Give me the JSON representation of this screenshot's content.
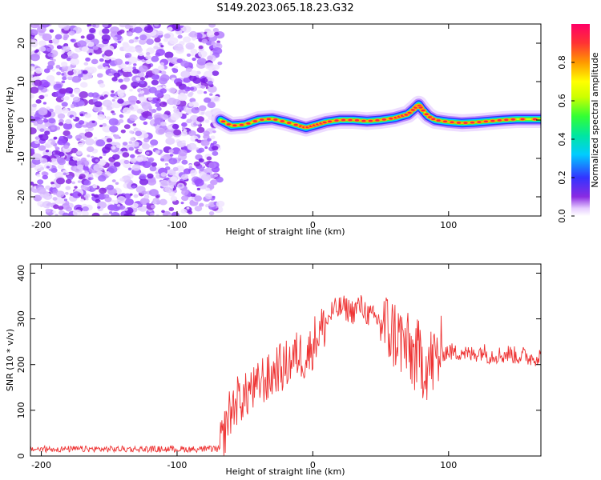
{
  "title": "S149.2023.065.18.23.G32",
  "chart_data": [
    {
      "type": "heatmap",
      "xlabel": "Height of straight line (km)",
      "ylabel": "Frequency (Hz)",
      "xlim": [
        -208,
        168
      ],
      "ylim": [
        -25,
        25
      ],
      "x_ticks": [
        -200,
        -100,
        0,
        100
      ],
      "x_tick_labels": [
        "-200",
        "-100",
        "0",
        "100"
      ],
      "y_ticks": [
        -20,
        -10,
        0,
        10,
        20
      ],
      "y_tick_labels": [
        "-20",
        "-10",
        "0",
        "10",
        "20"
      ],
      "colorbar": {
        "label": "Normalized spectral amplitude",
        "range": [
          0,
          1
        ],
        "ticks": [
          0.0,
          0.2,
          0.4,
          0.6,
          0.8
        ],
        "tick_labels": [
          "0.0",
          "0.2",
          "0.4",
          "0.6",
          "0.8"
        ],
        "colormap": [
          "#ffffff",
          "#cc99ff",
          "#8a2be2",
          "#3333ff",
          "#00ccff",
          "#00e6a0",
          "#33ff33",
          "#ccff00",
          "#ffff00",
          "#ff9900",
          "#ff3333",
          "#ff0066"
        ]
      },
      "noise_region_x": [
        -208,
        -68
      ],
      "signal_trace": {
        "x": [
          -68,
          -60,
          -50,
          -40,
          -30,
          -20,
          -10,
          -5,
          0,
          5,
          10,
          20,
          30,
          40,
          50,
          60,
          65,
          70,
          75,
          78,
          80,
          85,
          90,
          100,
          110,
          120,
          130,
          140,
          150,
          168
        ],
        "y": [
          0,
          -1.5,
          -1.2,
          0,
          0.3,
          -0.5,
          -1.5,
          -2,
          -1.5,
          -1,
          -0.5,
          0,
          0,
          -0.3,
          0,
          0.5,
          1,
          1.5,
          3,
          4,
          3,
          1,
          0,
          -0.5,
          -0.8,
          -0.6,
          -0.3,
          0,
          0.2,
          0.2
        ]
      }
    },
    {
      "type": "line",
      "xlabel": "Height of straight line (km)",
      "ylabel": "SNR (10 * v/v)",
      "xlim": [
        -208,
        168
      ],
      "ylim": [
        0,
        420
      ],
      "x_ticks": [
        -200,
        -100,
        0,
        100
      ],
      "x_tick_labels": [
        "-200",
        "-100",
        "0",
        "100"
      ],
      "y_ticks": [
        0,
        100,
        200,
        300,
        400
      ],
      "y_tick_labels": [
        "0",
        "100",
        "200",
        "300",
        "400"
      ],
      "color": "#ee3333",
      "series": [
        {
          "x": [
            -208,
            -190,
            -170,
            -150,
            -130,
            -110,
            -90,
            -70,
            -66,
            -62,
            -58,
            -54,
            -50,
            -46,
            -42,
            -38,
            -34,
            -30,
            -26,
            -22,
            -18,
            -14,
            -10,
            -6,
            -2,
            2,
            6,
            10,
            14,
            18,
            22,
            26,
            30,
            34,
            38,
            42,
            46,
            50,
            54,
            58,
            62,
            66,
            70,
            74,
            78,
            82,
            86,
            90,
            95,
            100,
            105,
            110,
            115,
            120,
            125,
            130,
            135,
            140,
            145,
            150,
            155,
            160,
            168
          ],
          "y": [
            14,
            13,
            14,
            12,
            13,
            14,
            13,
            13,
            40,
            90,
            110,
            130,
            125,
            150,
            140,
            170,
            165,
            175,
            195,
            190,
            205,
            215,
            225,
            215,
            230,
            260,
            275,
            290,
            315,
            320,
            325,
            320,
            315,
            330,
            320,
            305,
            300,
            295,
            280,
            270,
            265,
            250,
            230,
            220,
            215,
            205,
            200,
            210,
            225,
            230,
            225,
            230,
            220,
            225,
            230,
            220,
            222,
            220,
            225,
            218,
            220,
            215,
            218
          ]
        }
      ]
    }
  ]
}
